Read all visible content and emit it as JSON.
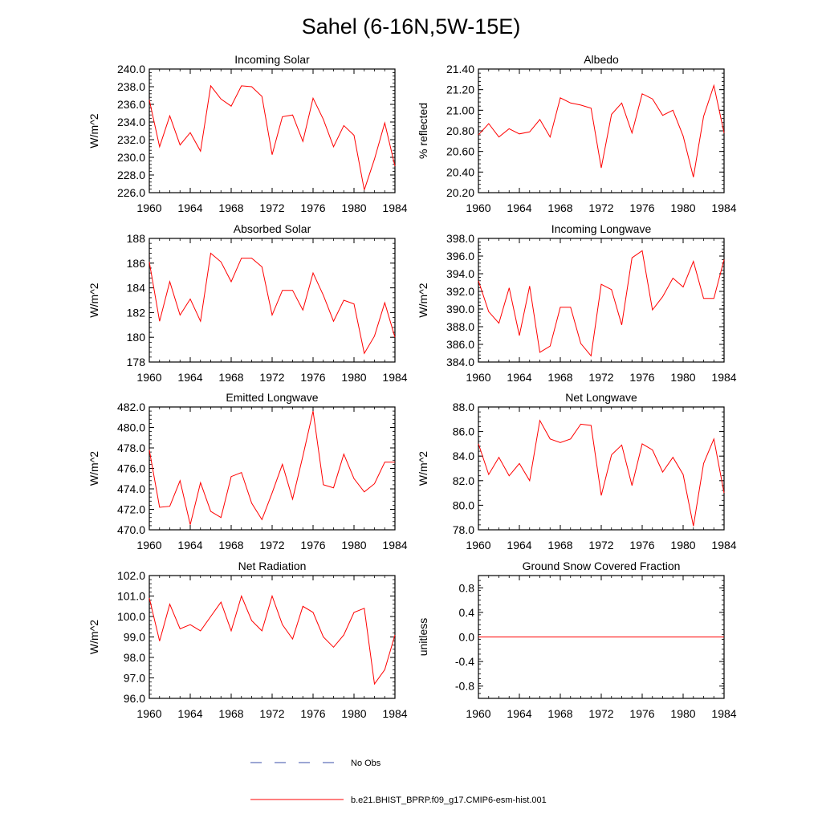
{
  "figure": {
    "title": "Sahel (6-16N,5W-15E)",
    "line_color": "#ff0000",
    "obs_color": "#3a4fa8"
  },
  "legend": {
    "obs_label": "No Obs",
    "model_label": "b.e21.BHIST_BPRP.f09_g17.CMIP6-esm-hist.001"
  },
  "chart_data": [
    {
      "type": "line",
      "title": "Incoming Solar",
      "ylabel": "W/m^2",
      "xlim": [
        1960,
        1984
      ],
      "ylim": [
        226.0,
        240.0
      ],
      "yticks": [
        226.0,
        228.0,
        230.0,
        232.0,
        234.0,
        236.0,
        238.0,
        240.0
      ],
      "ytick_labels": [
        "226.0",
        "228.0",
        "230.0",
        "232.0",
        "234.0",
        "236.0",
        "238.0",
        "240.0"
      ],
      "xticks": [
        1960,
        1964,
        1968,
        1972,
        1976,
        1980,
        1984
      ],
      "xtick_labels": [
        "1960",
        "1964",
        "1968",
        "1972",
        "1976",
        "1980",
        "1984"
      ],
      "x": [
        1960,
        1961,
        1962,
        1963,
        1964,
        1965,
        1966,
        1967,
        1968,
        1969,
        1970,
        1971,
        1972,
        1973,
        1974,
        1975,
        1976,
        1977,
        1978,
        1979,
        1980,
        1981,
        1982,
        1983,
        1984
      ],
      "values": [
        236.5,
        231.2,
        234.7,
        231.4,
        232.8,
        230.7,
        238.1,
        236.6,
        235.8,
        238.1,
        238.0,
        236.9,
        230.3,
        234.6,
        234.8,
        231.8,
        236.7,
        234.3,
        231.2,
        233.6,
        232.5,
        226.3,
        229.8,
        233.9,
        229.0
      ]
    },
    {
      "type": "line",
      "title": "Albedo",
      "ylabel": "% reflected",
      "xlim": [
        1960,
        1984
      ],
      "ylim": [
        20.2,
        21.4
      ],
      "yticks": [
        20.2,
        20.4,
        20.6,
        20.8,
        21.0,
        21.2,
        21.4
      ],
      "ytick_labels": [
        "20.20",
        "20.40",
        "20.60",
        "20.80",
        "21.00",
        "21.20",
        "21.40"
      ],
      "xticks": [
        1960,
        1964,
        1968,
        1972,
        1976,
        1980,
        1984
      ],
      "xtick_labels": [
        "1960",
        "1964",
        "1968",
        "1972",
        "1976",
        "1980",
        "1984"
      ],
      "x": [
        1960,
        1961,
        1962,
        1963,
        1964,
        1965,
        1966,
        1967,
        1968,
        1969,
        1970,
        1971,
        1972,
        1973,
        1974,
        1975,
        1976,
        1977,
        1978,
        1979,
        1980,
        1981,
        1982,
        1983,
        1984
      ],
      "values": [
        20.76,
        20.87,
        20.74,
        20.82,
        20.77,
        20.79,
        20.91,
        20.74,
        21.12,
        21.07,
        21.05,
        21.02,
        20.44,
        20.96,
        21.07,
        20.78,
        21.16,
        21.11,
        20.95,
        21.0,
        20.75,
        20.35,
        20.94,
        21.24,
        20.78
      ]
    },
    {
      "type": "line",
      "title": "Absorbed Solar",
      "ylabel": "W/m^2",
      "xlim": [
        1960,
        1984
      ],
      "ylim": [
        178,
        188
      ],
      "yticks": [
        178,
        180,
        182,
        184,
        186,
        188
      ],
      "ytick_labels": [
        "178",
        "180",
        "182",
        "184",
        "186",
        "188"
      ],
      "xticks": [
        1960,
        1964,
        1968,
        1972,
        1976,
        1980,
        1984
      ],
      "xtick_labels": [
        "1960",
        "1964",
        "1968",
        "1972",
        "1976",
        "1980",
        "1984"
      ],
      "x": [
        1960,
        1961,
        1962,
        1963,
        1964,
        1965,
        1966,
        1967,
        1968,
        1969,
        1970,
        1971,
        1972,
        1973,
        1974,
        1975,
        1976,
        1977,
        1978,
        1979,
        1980,
        1981,
        1982,
        1983,
        1984
      ],
      "values": [
        186.1,
        181.3,
        184.5,
        181.8,
        183.1,
        181.3,
        186.8,
        186.1,
        184.5,
        186.4,
        186.4,
        185.7,
        181.8,
        183.8,
        183.8,
        182.2,
        185.2,
        183.4,
        181.3,
        183.0,
        182.7,
        178.7,
        180.1,
        182.8,
        180.0
      ]
    },
    {
      "type": "line",
      "title": "Incoming Longwave",
      "ylabel": "W/m^2",
      "xlim": [
        1960,
        1984
      ],
      "ylim": [
        384.0,
        398.0
      ],
      "yticks": [
        384.0,
        386.0,
        388.0,
        390.0,
        392.0,
        394.0,
        396.0,
        398.0
      ],
      "ytick_labels": [
        "384.0",
        "386.0",
        "388.0",
        "390.0",
        "392.0",
        "394.0",
        "396.0",
        "398.0"
      ],
      "xticks": [
        1960,
        1964,
        1968,
        1972,
        1976,
        1980,
        1984
      ],
      "xtick_labels": [
        "1960",
        "1964",
        "1968",
        "1972",
        "1976",
        "1980",
        "1984"
      ],
      "x": [
        1960,
        1961,
        1962,
        1963,
        1964,
        1965,
        1966,
        1967,
        1968,
        1969,
        1970,
        1971,
        1972,
        1973,
        1974,
        1975,
        1976,
        1977,
        1978,
        1979,
        1980,
        1981,
        1982,
        1983,
        1984
      ],
      "values": [
        393.2,
        389.7,
        388.4,
        392.4,
        387.0,
        392.6,
        385.1,
        385.8,
        390.2,
        390.2,
        386.1,
        384.7,
        392.8,
        392.2,
        388.2,
        395.8,
        396.6,
        389.9,
        391.4,
        393.5,
        392.5,
        395.4,
        391.2,
        391.2,
        395.6
      ]
    },
    {
      "type": "line",
      "title": "Emitted Longwave",
      "ylabel": "W/m^2",
      "xlim": [
        1960,
        1984
      ],
      "ylim": [
        470.0,
        482.0
      ],
      "yticks": [
        470.0,
        472.0,
        474.0,
        476.0,
        478.0,
        480.0,
        482.0
      ],
      "ytick_labels": [
        "470.0",
        "472.0",
        "474.0",
        "476.0",
        "478.0",
        "480.0",
        "482.0"
      ],
      "xticks": [
        1960,
        1964,
        1968,
        1972,
        1976,
        1980,
        1984
      ],
      "xtick_labels": [
        "1960",
        "1964",
        "1968",
        "1972",
        "1976",
        "1980",
        "1984"
      ],
      "x": [
        1960,
        1961,
        1962,
        1963,
        1964,
        1965,
        1966,
        1967,
        1968,
        1969,
        1970,
        1971,
        1972,
        1973,
        1974,
        1975,
        1976,
        1977,
        1978,
        1979,
        1980,
        1981,
        1982,
        1983,
        1984
      ],
      "values": [
        477.8,
        472.2,
        472.3,
        474.8,
        470.5,
        474.6,
        471.8,
        471.2,
        475.2,
        475.6,
        472.6,
        471.0,
        473.6,
        476.4,
        473.0,
        477.2,
        481.6,
        474.4,
        474.1,
        477.4,
        475.0,
        473.7,
        474.5,
        476.6,
        476.6
      ]
    },
    {
      "type": "line",
      "title": "Net Longwave",
      "ylabel": "W/m^2",
      "xlim": [
        1960,
        1984
      ],
      "ylim": [
        78.0,
        88.0
      ],
      "yticks": [
        78.0,
        80.0,
        82.0,
        84.0,
        86.0,
        88.0
      ],
      "ytick_labels": [
        "78.0",
        "80.0",
        "82.0",
        "84.0",
        "86.0",
        "88.0"
      ],
      "xticks": [
        1960,
        1964,
        1968,
        1972,
        1976,
        1980,
        1984
      ],
      "xtick_labels": [
        "1960",
        "1964",
        "1968",
        "1972",
        "1976",
        "1980",
        "1984"
      ],
      "x": [
        1960,
        1961,
        1962,
        1963,
        1964,
        1965,
        1966,
        1967,
        1968,
        1969,
        1970,
        1971,
        1972,
        1973,
        1974,
        1975,
        1976,
        1977,
        1978,
        1979,
        1980,
        1981,
        1982,
        1983,
        1984
      ],
      "values": [
        85.0,
        82.5,
        83.9,
        82.4,
        83.4,
        82.0,
        86.9,
        85.4,
        85.1,
        85.4,
        86.6,
        86.5,
        80.8,
        84.1,
        84.9,
        81.6,
        85.0,
        84.5,
        82.7,
        83.9,
        82.5,
        78.3,
        83.4,
        85.4,
        81.0
      ]
    },
    {
      "type": "line",
      "title": "Net Radiation",
      "ylabel": "W/m^2",
      "xlim": [
        1960,
        1984
      ],
      "ylim": [
        96.0,
        102.0
      ],
      "yticks": [
        96.0,
        97.0,
        98.0,
        99.0,
        100.0,
        101.0,
        102.0
      ],
      "ytick_labels": [
        "96.0",
        "97.0",
        "98.0",
        "99.0",
        "100.0",
        "101.0",
        "102.0"
      ],
      "xticks": [
        1960,
        1964,
        1968,
        1972,
        1976,
        1980,
        1984
      ],
      "xtick_labels": [
        "1960",
        "1964",
        "1968",
        "1972",
        "1976",
        "1980",
        "1984"
      ],
      "x": [
        1960,
        1961,
        1962,
        1963,
        1964,
        1965,
        1966,
        1967,
        1968,
        1969,
        1970,
        1971,
        1972,
        1973,
        1974,
        1975,
        1976,
        1977,
        1978,
        1979,
        1980,
        1981,
        1982,
        1983,
        1984
      ],
      "values": [
        100.9,
        98.8,
        100.6,
        99.4,
        99.6,
        99.3,
        100.0,
        100.7,
        99.3,
        101.0,
        99.8,
        99.3,
        101.0,
        99.6,
        98.9,
        100.5,
        100.2,
        99.0,
        98.5,
        99.1,
        100.2,
        100.4,
        96.7,
        97.4,
        99.1
      ]
    },
    {
      "type": "line",
      "title": "Ground Snow Covered Fraction",
      "ylabel": "unitless",
      "xlim": [
        1960,
        1984
      ],
      "ylim": [
        -1.0,
        1.0
      ],
      "yticks": [
        -0.8,
        -0.4,
        0.0,
        0.4,
        0.8
      ],
      "ytick_labels": [
        "-0.8",
        "-0.4",
        "0.0",
        "0.4",
        "0.8"
      ],
      "xticks": [
        1960,
        1964,
        1968,
        1972,
        1976,
        1980,
        1984
      ],
      "xtick_labels": [
        "1960",
        "1964",
        "1968",
        "1972",
        "1976",
        "1980",
        "1984"
      ],
      "x": [
        1960,
        1961,
        1962,
        1963,
        1964,
        1965,
        1966,
        1967,
        1968,
        1969,
        1970,
        1971,
        1972,
        1973,
        1974,
        1975,
        1976,
        1977,
        1978,
        1979,
        1980,
        1981,
        1982,
        1983,
        1984
      ],
      "values": [
        0,
        0,
        0,
        0,
        0,
        0,
        0,
        0,
        0,
        0,
        0,
        0,
        0,
        0,
        0,
        0,
        0,
        0,
        0,
        0,
        0,
        0,
        0,
        0,
        0
      ]
    }
  ]
}
